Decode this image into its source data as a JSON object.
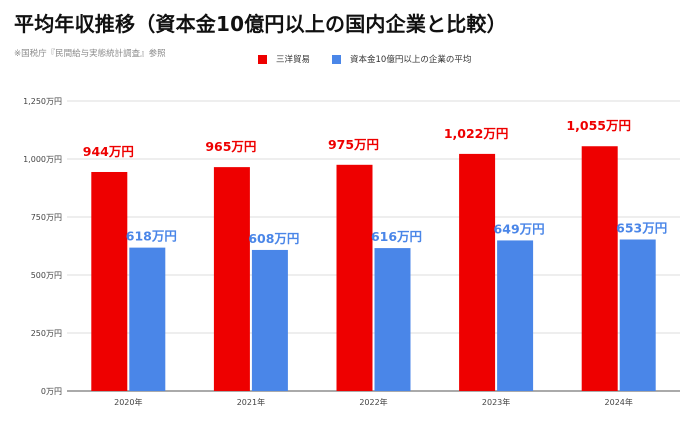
{
  "title": "平均年収推移（資本金10億円以上の国内企業と比較）",
  "source_note": "※国税庁『民間給与実態統計調査』参照",
  "colors": {
    "series1": "#ee0000",
    "series2": "#4a86e8",
    "grid": "#dddddd",
    "axis": "#555555"
  },
  "chart_data": {
    "type": "bar",
    "title": "平均年収推移（資本金10億円以上の国内企業と比較）",
    "categories": [
      "2020年",
      "2021年",
      "2022年",
      "2023年",
      "2024年"
    ],
    "series": [
      {
        "name": "三洋貿易",
        "values": [
          944,
          965,
          975,
          1022,
          1055
        ],
        "labels": [
          "944万円",
          "965万円",
          "975万円",
          "1,022万円",
          "1,055万円"
        ]
      },
      {
        "name": "資本金10億円以上の企業の平均",
        "values": [
          618,
          608,
          616,
          649,
          653
        ],
        "labels": [
          "618万円",
          "608万円",
          "616万円",
          "649万円",
          "653万円"
        ]
      }
    ],
    "ylim": [
      0,
      1250
    ],
    "yticks": [
      0,
      250,
      500,
      750,
      1000,
      1250
    ],
    "ytick_labels": [
      "0万円",
      "250万円",
      "500万円",
      "750万円",
      "1,000万円",
      "1,250万円"
    ],
    "xlabel": "",
    "ylabel": "",
    "grid": true,
    "legend_position": "top"
  }
}
